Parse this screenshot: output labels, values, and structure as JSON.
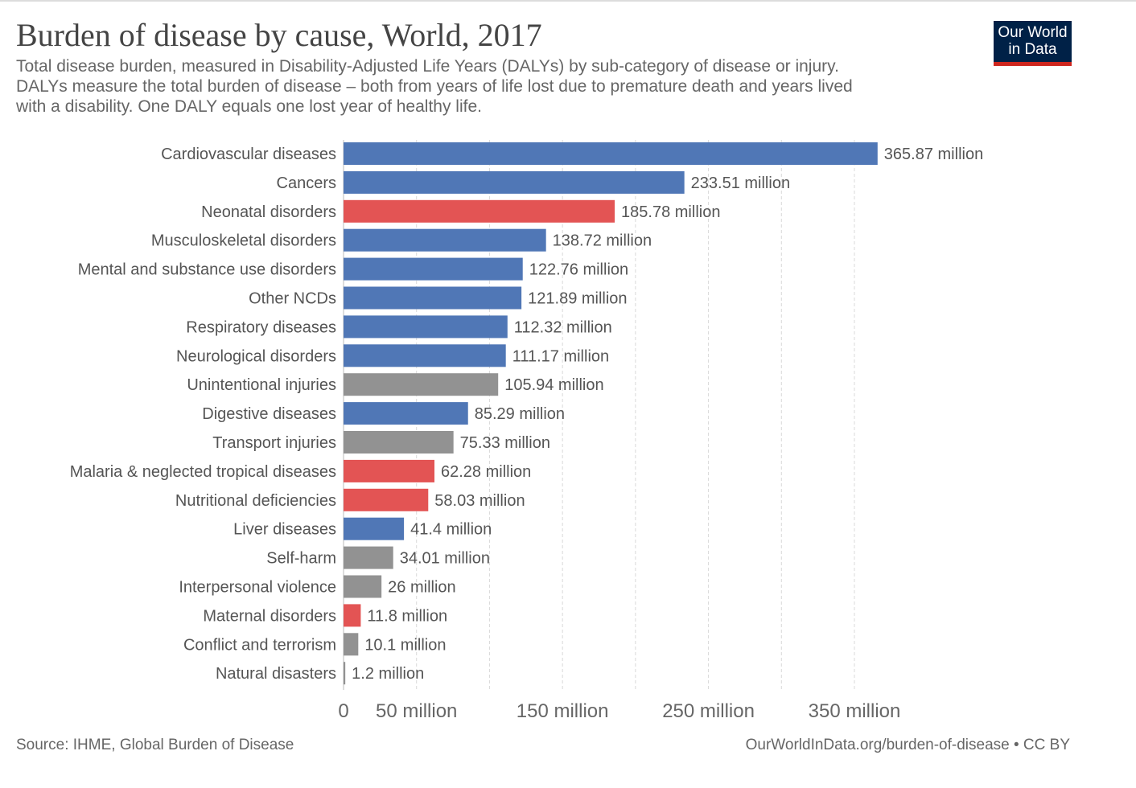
{
  "header": {
    "title": "Burden of disease by cause, World, 2017",
    "subtitle_lines": [
      "Total disease burden, measured in Disability-Adjusted Life Years (DALYs) by sub-category of disease or injury.",
      " DALYs measure the total burden of disease – both from years of life lost due to premature death and years lived",
      "with a disability. One DALY equals one lost year of healthy life."
    ],
    "logo_line1": "Our World",
    "logo_line2": "in Data"
  },
  "footer": {
    "source": "Source: IHME, Global Burden of Disease",
    "link": "OurWorldInData.org/burden-of-disease • CC BY"
  },
  "colors": {
    "ncd": "#5077b6",
    "communicable": "#e35454",
    "injuries": "#929292",
    "gridline": "#d9d9d9",
    "axis_text": "#555555",
    "logo_bg": "#002147",
    "logo_accent": "#ce261e"
  },
  "chart_data": {
    "type": "bar",
    "orientation": "horizontal",
    "title": "Burden of disease by cause, World, 2017",
    "xlabel": "",
    "ylabel": "",
    "xlim": [
      0,
      390
    ],
    "unit_suffix": " million",
    "x_ticks": [
      {
        "value": 0,
        "label": "0"
      },
      {
        "value": 50,
        "label": "50 million"
      },
      {
        "value": 150,
        "label": "150 million"
      },
      {
        "value": 250,
        "label": "250 million"
      },
      {
        "value": 350,
        "label": "350 million"
      }
    ],
    "gridlines": [
      50,
      100,
      150,
      200,
      250,
      300,
      350
    ],
    "categories": [
      "Cardiovascular diseases",
      "Cancers",
      "Neonatal disorders",
      "Musculoskeletal disorders",
      "Mental and substance use disorders",
      "Other NCDs",
      "Respiratory diseases",
      "Neurological disorders",
      "Unintentional injuries",
      "Digestive diseases",
      "Transport injuries",
      "Malaria & neglected tropical diseases",
      "Nutritional deficiencies",
      "Liver diseases",
      "Self-harm",
      "Interpersonal violence",
      "Maternal disorders",
      "Conflict and terrorism",
      "Natural disasters"
    ],
    "values": [
      365.87,
      233.51,
      185.78,
      138.72,
      122.76,
      121.89,
      112.32,
      111.17,
      105.94,
      85.29,
      75.33,
      62.28,
      58.03,
      41.4,
      34.01,
      26,
      11.8,
      10.1,
      1.2
    ],
    "value_labels": [
      "365.87 million",
      "233.51 million",
      "185.78 million",
      "138.72 million",
      "122.76 million",
      "121.89 million",
      "112.32 million",
      "111.17 million",
      "105.94 million",
      "85.29 million",
      "75.33 million",
      "62.28 million",
      "58.03 million",
      "41.4 million",
      "34.01 million",
      "26 million",
      "11.8 million",
      "10.1 million",
      "1.2 million"
    ],
    "groups": [
      "ncd",
      "ncd",
      "communicable",
      "ncd",
      "ncd",
      "ncd",
      "ncd",
      "ncd",
      "injuries",
      "ncd",
      "injuries",
      "communicable",
      "communicable",
      "ncd",
      "injuries",
      "injuries",
      "communicable",
      "injuries",
      "injuries"
    ]
  }
}
